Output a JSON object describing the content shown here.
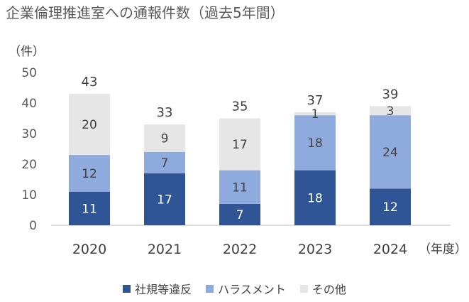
{
  "title": "企業倫理推進室への通報件数（過去5年間）",
  "chart_data": {
    "type": "bar",
    "stacked": true,
    "title": "企業倫理推進室への通報件数（過去5年間）",
    "ylabel": "（件）",
    "xlabel": "（年度）",
    "ylim": [
      0,
      50
    ],
    "yticks": [
      0,
      10,
      20,
      30,
      40,
      50
    ],
    "categories": [
      "2020",
      "2021",
      "2022",
      "2023",
      "2024"
    ],
    "series": [
      {
        "name": "社規等違反",
        "color": "#2F5597",
        "label_color": "#ffffff",
        "values": [
          11,
          17,
          7,
          18,
          12
        ]
      },
      {
        "name": "ハラスメント",
        "color": "#8FAADC",
        "label_color": "#404040",
        "values": [
          12,
          7,
          11,
          18,
          24
        ]
      },
      {
        "name": "その他",
        "color": "#E7E6E6",
        "label_color": "#404040",
        "values": [
          20,
          9,
          17,
          1,
          3
        ]
      }
    ],
    "totals": [
      43,
      33,
      35,
      37,
      39
    ],
    "grid": false,
    "legend_position": "bottom"
  }
}
